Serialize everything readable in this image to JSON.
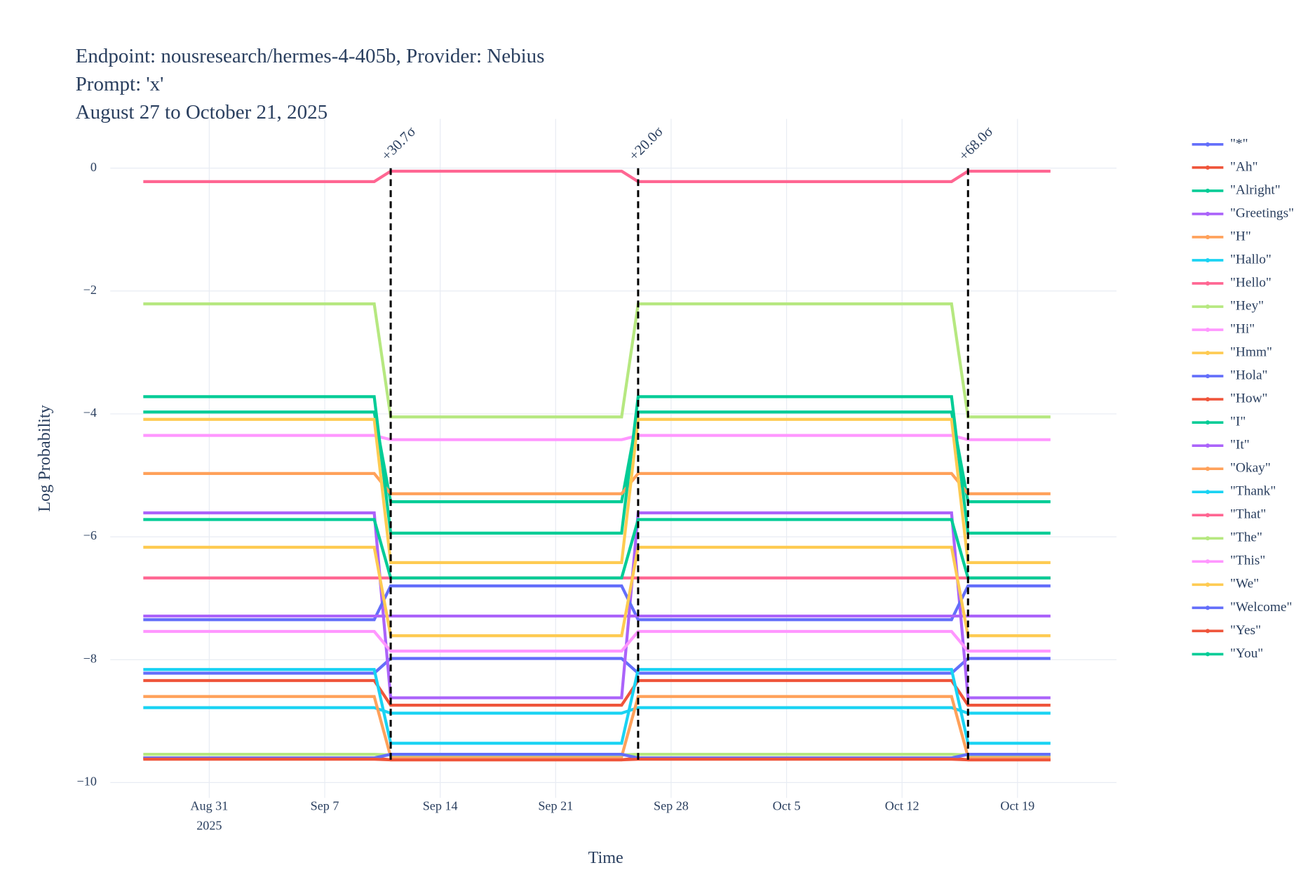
{
  "chart_data": {
    "type": "line",
    "title_lines": [
      "Endpoint: nousresearch/hermes-4-405b, Provider: Nebius",
      "Prompt: 'x'",
      "August 27 to October 21, 2025"
    ],
    "x_label": "Time",
    "y_label": "Log Probability",
    "xlim": [
      "2025-08-25",
      "2025-10-25"
    ],
    "ylim": [
      -10.25,
      0.8
    ],
    "xticks": [
      {
        "value": "2025-08-31",
        "label": "Aug 31"
      },
      {
        "value": "2025-09-07",
        "label": "Sep 7"
      },
      {
        "value": "2025-09-14",
        "label": "Sep 14"
      },
      {
        "value": "2025-09-21",
        "label": "Sep 21"
      },
      {
        "value": "2025-09-28",
        "label": "Sep 28"
      },
      {
        "value": "2025-10-05",
        "label": "Oct 5"
      },
      {
        "value": "2025-10-12",
        "label": "Oct 12"
      },
      {
        "value": "2025-10-19",
        "label": "Oct 19"
      }
    ],
    "xtick_year": "2025",
    "yticks": [
      0,
      {
        "value": -2,
        "label": "−2"
      },
      {
        "value": -4,
        "label": "−4"
      },
      {
        "value": -6,
        "label": "−6"
      },
      {
        "value": -8,
        "label": "−8"
      },
      {
        "value": -10,
        "label": "−10"
      }
    ],
    "grid": true,
    "annotations": [
      {
        "x": "2025-09-11",
        "text": "+30.7σ"
      },
      {
        "x": "2025-09-26",
        "text": "+20.0σ"
      },
      {
        "x": "2025-10-16",
        "text": "+68.0σ"
      }
    ],
    "x": [
      "2025-08-27",
      "2025-09-10",
      "2025-09-11",
      "2025-09-25",
      "2025-09-26",
      "2025-10-15",
      "2025-10-16",
      "2025-10-21"
    ],
    "series": [
      {
        "name": "\"*\"",
        "color": "#636EFA",
        "values": [
          -8.22,
          -8.22,
          -7.98,
          -7.98,
          -8.22,
          -8.22,
          -7.98,
          -7.98
        ]
      },
      {
        "name": "\"Ah\"",
        "color": "#EF553B",
        "values": [
          -9.6,
          -9.6,
          -9.63,
          -9.63,
          -9.6,
          -9.6,
          -9.63,
          -9.63
        ]
      },
      {
        "name": "\"Alright\"",
        "color": "#00CC96",
        "values": [
          -3.97,
          -3.97,
          -5.43,
          -5.43,
          -3.97,
          -3.97,
          -5.43,
          -5.43
        ]
      },
      {
        "name": "\"Greetings\"",
        "color": "#AB63FA",
        "values": [
          -5.61,
          -5.61,
          -8.62,
          -8.62,
          -5.61,
          -5.61,
          -8.62,
          -8.62
        ]
      },
      {
        "name": "\"H\"",
        "color": "#FFA15A",
        "values": [
          -4.97,
          -4.97,
          -5.3,
          -5.3,
          -4.97,
          -4.97,
          -5.3,
          -5.3
        ]
      },
      {
        "name": "\"Hallo\"",
        "color": "#19D3F3",
        "values": [
          -8.78,
          -8.78,
          -8.87,
          -8.87,
          -8.78,
          -8.78,
          -8.87,
          -8.87
        ]
      },
      {
        "name": "\"Hello\"",
        "color": "#FF6692",
        "values": [
          -0.22,
          -0.22,
          -0.05,
          -0.05,
          -0.22,
          -0.22,
          -0.05,
          -0.05
        ]
      },
      {
        "name": "\"Hey\"",
        "color": "#B6E880",
        "values": [
          -2.21,
          -2.21,
          -4.05,
          -4.05,
          -2.21,
          -2.21,
          -4.05,
          -4.05
        ]
      },
      {
        "name": "\"Hi\"",
        "color": "#FF97FF",
        "values": [
          -4.35,
          -4.35,
          -4.42,
          -4.42,
          -4.35,
          -4.35,
          -4.42,
          -4.42
        ]
      },
      {
        "name": "\"Hmm\"",
        "color": "#FECB52",
        "values": [
          -4.09,
          -4.09,
          -6.42,
          -6.42,
          -4.09,
          -4.09,
          -6.42,
          -6.42
        ]
      },
      {
        "name": "\"Hola\"",
        "color": "#636EFA",
        "values": [
          -7.35,
          -7.35,
          -6.8,
          -6.8,
          -7.35,
          -7.35,
          -6.8,
          -6.8
        ]
      },
      {
        "name": "\"How\"",
        "color": "#EF553B",
        "values": [
          -8.34,
          -8.34,
          -8.74,
          -8.74,
          -8.34,
          -8.34,
          -8.74,
          -8.74
        ]
      },
      {
        "name": "\"I\"",
        "color": "#00CC96",
        "values": [
          -3.72,
          -3.72,
          -5.94,
          -5.94,
          -3.72,
          -3.72,
          -5.94,
          -5.94
        ]
      },
      {
        "name": "\"It\"",
        "color": "#AB63FA",
        "values": [
          -7.29,
          -7.29,
          -7.29,
          -7.29,
          -7.29,
          -7.29,
          -7.29,
          -7.29
        ]
      },
      {
        "name": "\"Okay\"",
        "color": "#FFA15A",
        "values": [
          -8.6,
          -8.6,
          -9.58,
          -9.58,
          -8.6,
          -8.6,
          -9.58,
          -9.58
        ]
      },
      {
        "name": "\"Thank\"",
        "color": "#19D3F3",
        "values": [
          -8.16,
          -8.16,
          -9.36,
          -9.36,
          -8.16,
          -8.16,
          -9.36,
          -9.36
        ]
      },
      {
        "name": "\"That\"",
        "color": "#FF6692",
        "values": [
          -6.67,
          -6.67,
          -6.67,
          -6.67,
          -6.67,
          -6.67,
          -6.67,
          -6.67
        ]
      },
      {
        "name": "\"The\"",
        "color": "#B6E880",
        "values": [
          -9.54,
          -9.54,
          -9.55,
          -9.55,
          -9.54,
          -9.54,
          -9.55,
          -9.55
        ]
      },
      {
        "name": "\"This\"",
        "color": "#FF97FF",
        "values": [
          -7.54,
          -7.54,
          -7.86,
          -7.86,
          -7.54,
          -7.54,
          -7.86,
          -7.86
        ]
      },
      {
        "name": "\"We\"",
        "color": "#FECB52",
        "values": [
          -6.17,
          -6.17,
          -7.61,
          -7.61,
          -6.17,
          -6.17,
          -7.61,
          -7.61
        ]
      },
      {
        "name": "\"Welcome\"",
        "color": "#636EFA",
        "values": [
          -9.6,
          -9.6,
          -9.54,
          -9.54,
          -9.6,
          -9.6,
          -9.54,
          -9.54
        ]
      },
      {
        "name": "\"Yes\"",
        "color": "#EF553B",
        "values": [
          -9.62,
          -9.62,
          -9.63,
          -9.63,
          -9.62,
          -9.62,
          -9.63,
          -9.63
        ]
      },
      {
        "name": "\"You\"",
        "color": "#00CC96",
        "values": [
          -5.72,
          -5.72,
          -6.67,
          -6.67,
          -5.72,
          -5.72,
          -6.67,
          -6.67
        ]
      }
    ]
  }
}
